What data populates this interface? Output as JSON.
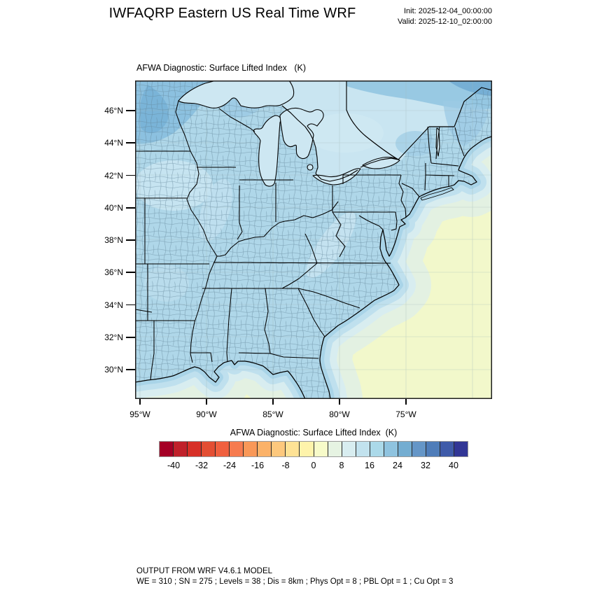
{
  "header": {
    "title": "IWFAQRP Eastern US Real Time WRF",
    "init_line": "Init: 2025-12-04_00:00:00",
    "valid_line": "Valid: 2025-12-10_02:00:00"
  },
  "map": {
    "subtitle": "AFWA Diagnostic: Surface Lifted Index   (K)",
    "lat_labels": [
      "46°N",
      "44°N",
      "42°N",
      "40°N",
      "38°N",
      "36°N",
      "34°N",
      "32°N",
      "30°N"
    ],
    "lon_labels": [
      "95°W",
      "90°W",
      "85°W",
      "80°W",
      "75°W"
    ]
  },
  "colorbar": {
    "title": "AFWA Diagnostic: Surface Lifted Index  (K)",
    "tick_labels": [
      "-40",
      "-32",
      "-24",
      "-16",
      "-8",
      "0",
      "8",
      "16",
      "24",
      "32",
      "40"
    ],
    "colors": [
      "#a50026",
      "#c0212b",
      "#d73027",
      "#e34e33",
      "#f0603f",
      "#f67b4f",
      "#f99858",
      "#fbb269",
      "#fdc87d",
      "#fee295",
      "#fef3ab",
      "#f7fbc9",
      "#e6f3e2",
      "#d8edf0",
      "#c2e2ee",
      "#abd9e9",
      "#8fc3df",
      "#74add1",
      "#6596c7",
      "#4f7db9",
      "#3f5ba9",
      "#313695"
    ]
  },
  "footer": {
    "line1": "OUTPUT FROM WRF V4.6.1 MODEL",
    "line2": "WE = 310 ; SN = 275 ; Levels = 38 ; Dis = 8km ; Phys Opt = 8 ; PBL Opt = 1 ; Cu Opt = 3"
  }
}
